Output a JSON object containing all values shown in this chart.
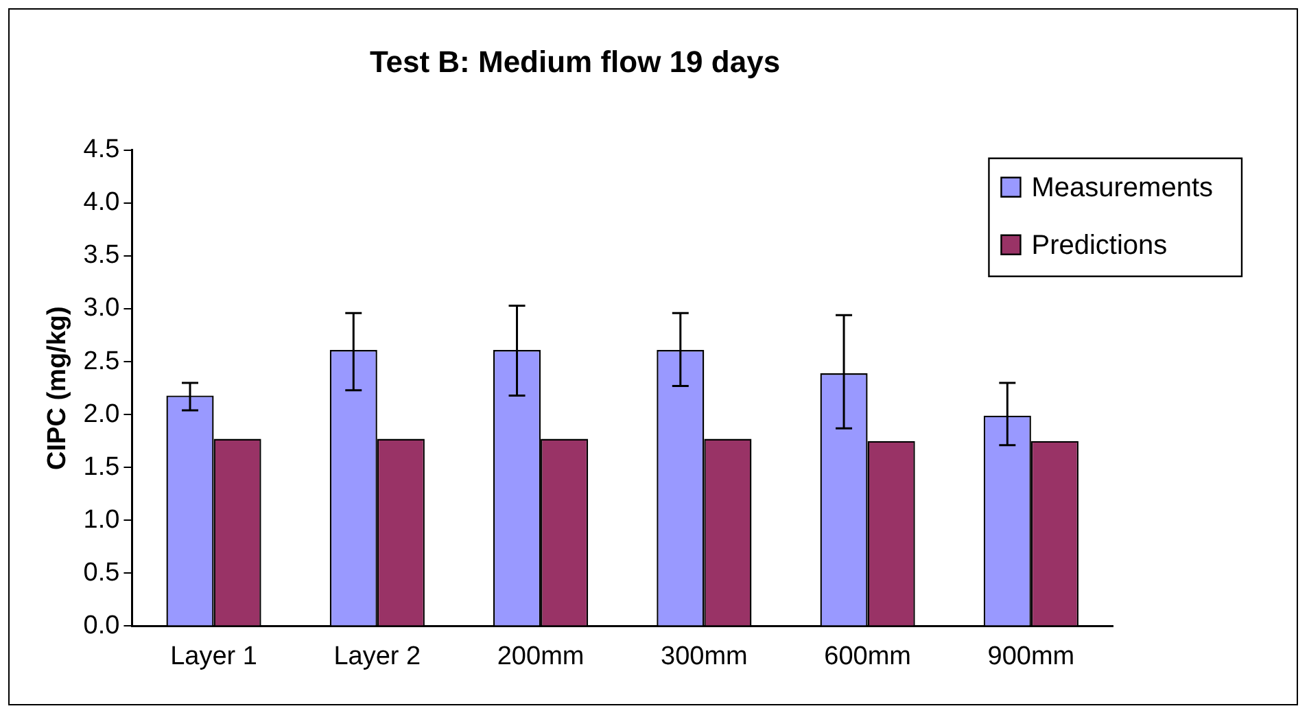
{
  "chart_data": {
    "type": "bar",
    "title": "Test B: Medium flow 19 days",
    "ylabel": "CIPC (mg/kg)",
    "categories": [
      "Layer 1",
      "Layer 2",
      "200mm",
      "300mm",
      "600mm",
      "900mm"
    ],
    "series": [
      {
        "name": "Measurements",
        "color": "#9999ff",
        "values": [
          2.18,
          2.61,
          2.61,
          2.61,
          2.39,
          1.99
        ],
        "errors": [
          [
            2.04,
            2.3
          ],
          [
            2.23,
            2.96
          ],
          [
            2.18,
            3.03
          ],
          [
            2.27,
            2.96
          ],
          [
            1.87,
            2.94
          ],
          [
            1.71,
            2.3
          ]
        ]
      },
      {
        "name": "Predictions",
        "color": "#993366",
        "values": [
          1.77,
          1.77,
          1.77,
          1.77,
          1.75,
          1.75
        ]
      }
    ],
    "ylim": [
      0,
      4.5
    ],
    "yticks": [
      {
        "value": 0,
        "label": "0.0"
      },
      {
        "value": 0.5,
        "label": "0.5"
      },
      {
        "value": 1,
        "label": "1.0"
      },
      {
        "value": 1.5,
        "label": "1.5"
      },
      {
        "value": 2,
        "label": "2.0"
      },
      {
        "value": 2.5,
        "label": "2.5"
      },
      {
        "value": 3,
        "label": "3.0"
      },
      {
        "value": 3.5,
        "label": "3.5"
      },
      {
        "value": 4,
        "label": "4.0"
      },
      {
        "value": 4.5,
        "label": "4.5"
      }
    ],
    "grid": false,
    "legend": "top right"
  }
}
